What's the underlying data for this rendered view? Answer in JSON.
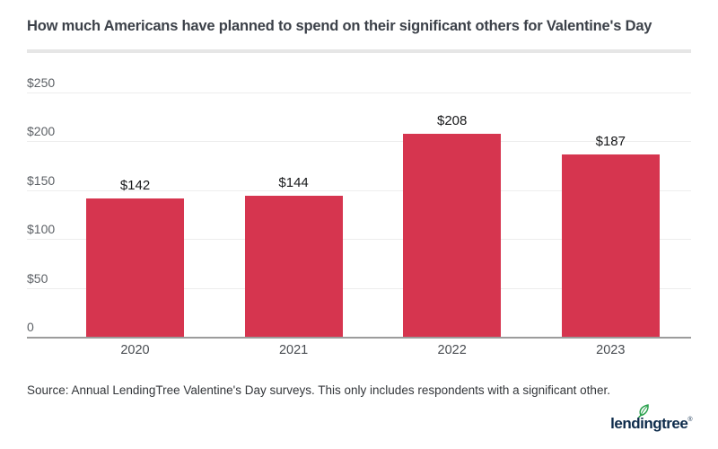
{
  "title": "How much Americans have planned to spend on their significant others for Valentine's Day",
  "chart_data": {
    "type": "bar",
    "title": "How much Americans have planned to spend on their significant others for Valentine's Day",
    "categories": [
      "2020",
      "2021",
      "2022",
      "2023"
    ],
    "values": [
      142,
      144,
      208,
      187
    ],
    "value_labels": [
      "$142",
      "$144",
      "$208",
      "$187"
    ],
    "xlabel": "",
    "ylabel": "",
    "ylim": [
      0,
      250
    ],
    "ytick_values": [
      0,
      50,
      100,
      150,
      200,
      250
    ],
    "ytick_labels": [
      "0",
      "$50",
      "$100",
      "$150",
      "$200",
      "$250"
    ],
    "grid": true,
    "legend": false,
    "bar_color": "#d6354f"
  },
  "source": "Source: Annual LendingTree Valentine's Day surveys. This only includes respondents with a significant other.",
  "logo": {
    "part_before": "lend",
    "part_i": "i",
    "part_after": "ngtree",
    "registered": "®",
    "navy": "#0d2b4b",
    "green": "#2ba14e"
  },
  "colors": {
    "bar": "#d6354f",
    "title_text": "#3c4149",
    "ytick_text": "#5d6166",
    "xtick_text": "#484c51",
    "value_text": "#17181a",
    "gridline": "#ededed",
    "axis_line": "#9c9c9c",
    "divider": "#e6e6e6",
    "background": "#ffffff"
  }
}
